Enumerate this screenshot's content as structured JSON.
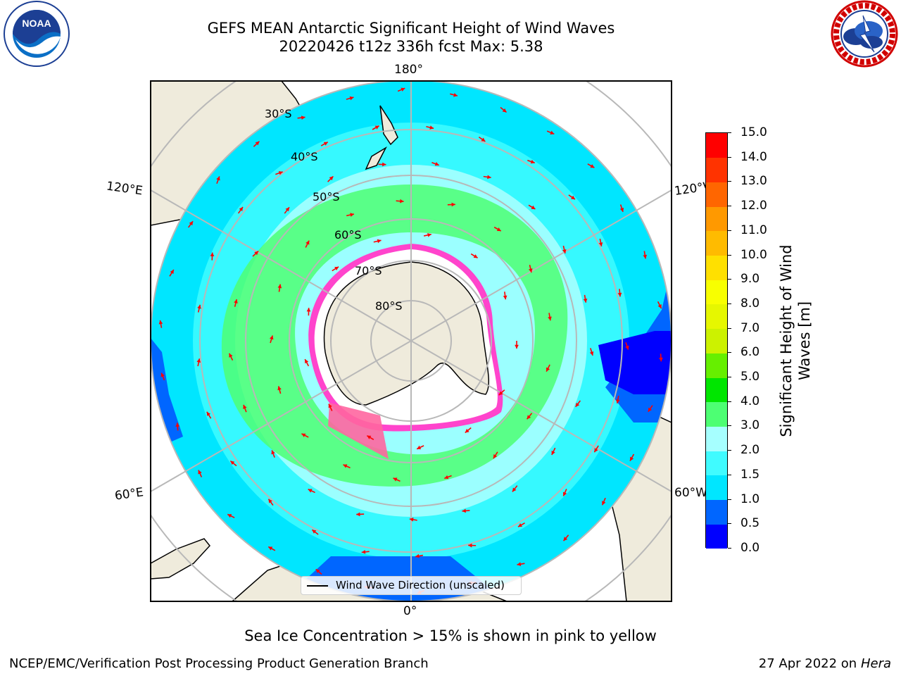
{
  "header": {
    "title_line1": "GEFS MEAN Antarctic Significant Height of Wind Waves",
    "title_line2": "20220426 t12z 336h fcst   Max: 5.38"
  },
  "logos": {
    "noaa": "NOAA",
    "noaa_ring_text": "NATIONAL OCEANIC AND ATMOSPHERIC ADMINISTRATION · U.S. DEPARTMENT OF COMMERCE",
    "nws_ring_text": "NATIONAL WEATHER SERVICE"
  },
  "map": {
    "projection": "south polar stereographic",
    "longitude_labels": {
      "top": "180°",
      "bottom": "0°",
      "upper_left": "120°E",
      "upper_right": "120°W",
      "lower_left": "60°E",
      "lower_right": "60°W"
    },
    "latitude_labels": [
      "30°S",
      "40°S",
      "50°S",
      "60°S",
      "70°S",
      "80°S"
    ],
    "land_color": "#efebdc",
    "ice_shelf_color": "#ffffff",
    "sea_ice_colors": [
      "#ff44cc",
      "#ff9a3a",
      "#ffe34c"
    ],
    "arrow_color": "#ff0000",
    "gridline_color": "#b8b8b8"
  },
  "colorbar": {
    "label": "Significant Height of Wind Waves [m]",
    "ticks": [
      "0.0",
      "0.5",
      "1.0",
      "1.5",
      "2.0",
      "3.0",
      "4.0",
      "5.0",
      "6.0",
      "7.0",
      "8.0",
      "9.0",
      "10.0",
      "11.0",
      "12.0",
      "13.0",
      "14.0",
      "15.0"
    ],
    "colors": [
      "#0000ff",
      "#0066ff",
      "#00e6ff",
      "#40fbff",
      "#a6ffff",
      "#4dff73",
      "#00e600",
      "#66ef00",
      "#ccf200",
      "#e6f700",
      "#f8ff00",
      "#ffe000",
      "#ffbb00",
      "#ff9900",
      "#ff6600",
      "#ff3300",
      "#ff0000"
    ]
  },
  "legend": {
    "label": "Wind Wave Direction (unscaled)"
  },
  "footer": {
    "note": "Sea Ice Concentration > 15% is shown in pink to yellow",
    "credit": "NCEP/EMC/Verification Post Processing Product Generation Branch",
    "date_prefix": "27 Apr 2022 on ",
    "machine": "Hera"
  }
}
